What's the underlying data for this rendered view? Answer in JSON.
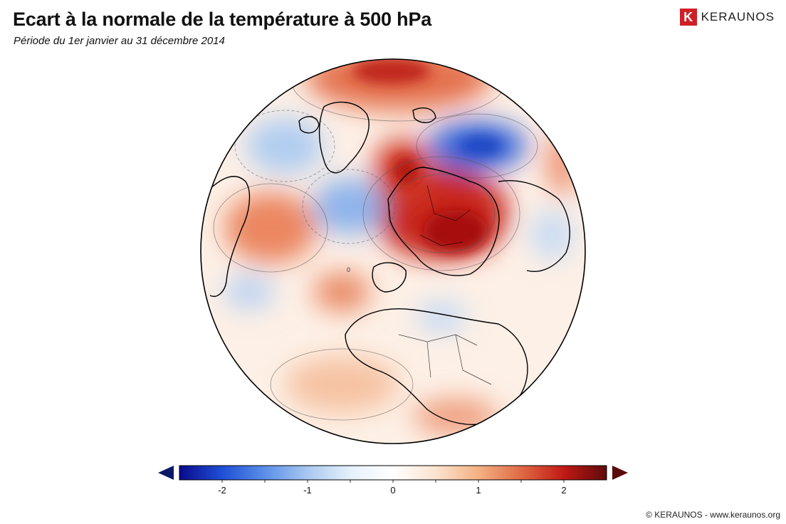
{
  "header": {
    "title": "Ecart à la normale de la température à 500 hPa",
    "subtitle": "Période du 1er janvier au 31 décembre 2014"
  },
  "brand": {
    "logo_letter": "K",
    "logo_text": "KERAUNOS",
    "logo_color": "#d01f26"
  },
  "map": {
    "projection": "orthographic",
    "region": "Europe, North Atlantic, Africa",
    "ocean_color": "#ffffff",
    "contour_zero_label": "0"
  },
  "colorbar": {
    "min": -2.5,
    "max": 2.5,
    "ticks": [
      -2,
      -1,
      0,
      1,
      2
    ],
    "tick_labels": [
      "-2",
      "-1",
      "0",
      "1",
      "2"
    ],
    "colors": [
      "#0a0a8c",
      "#1f4fd6",
      "#5b8fe8",
      "#a9c8f0",
      "#e6f0fb",
      "#ffffff",
      "#fbe3cf",
      "#f4b184",
      "#e06a45",
      "#c01a14",
      "#5e0a0a"
    ],
    "arrow_low_color": "#0a1a66",
    "arrow_high_color": "#5a0a0a"
  },
  "footer": {
    "copyright": "© KERAUNOS - www.keraunos.org"
  }
}
